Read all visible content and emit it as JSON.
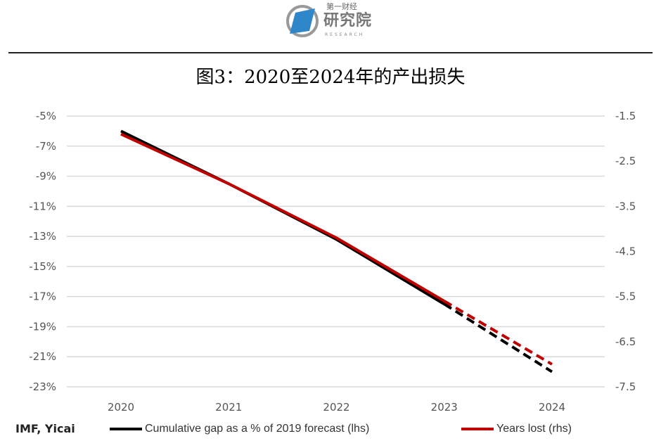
{
  "header": {
    "logo_text_top": "第一财经",
    "logo_text_main": "研究院",
    "logo_text_sub": "RESEARCH"
  },
  "chart_data": {
    "type": "line",
    "title": "图3：2020至2024年的产出损失",
    "source": "IMF, Yicai",
    "x": [
      "2020",
      "2021",
      "2022",
      "2023",
      "2024"
    ],
    "forecast_from": "2023",
    "y_left": {
      "ticks": [
        "-5%",
        "-7%",
        "-9%",
        "-11%",
        "-13%",
        "-15%",
        "-17%",
        "-19%",
        "-21%",
        "-23%"
      ],
      "range": [
        -23,
        -5
      ]
    },
    "y_right": {
      "ticks": [
        "-1.5",
        "-2.5",
        "-3.5",
        "-4.5",
        "-5.5",
        "-6.5",
        "-7.5"
      ],
      "range": [
        -7.5,
        -1.5
      ]
    },
    "grid": true,
    "legend_placement": "bottom",
    "series": [
      {
        "name": "Cumulative gap as a % of 2019 forecast (lhs)",
        "axis": "left",
        "color": "#000000",
        "values": [
          -6.0,
          -9.5,
          -13.2,
          -17.5,
          -22.0
        ]
      },
      {
        "name": "Years lost (rhs)",
        "axis": "right",
        "color": "#c00000",
        "values": [
          -1.9,
          -3.0,
          -4.2,
          -5.6,
          -7.0
        ]
      }
    ]
  }
}
